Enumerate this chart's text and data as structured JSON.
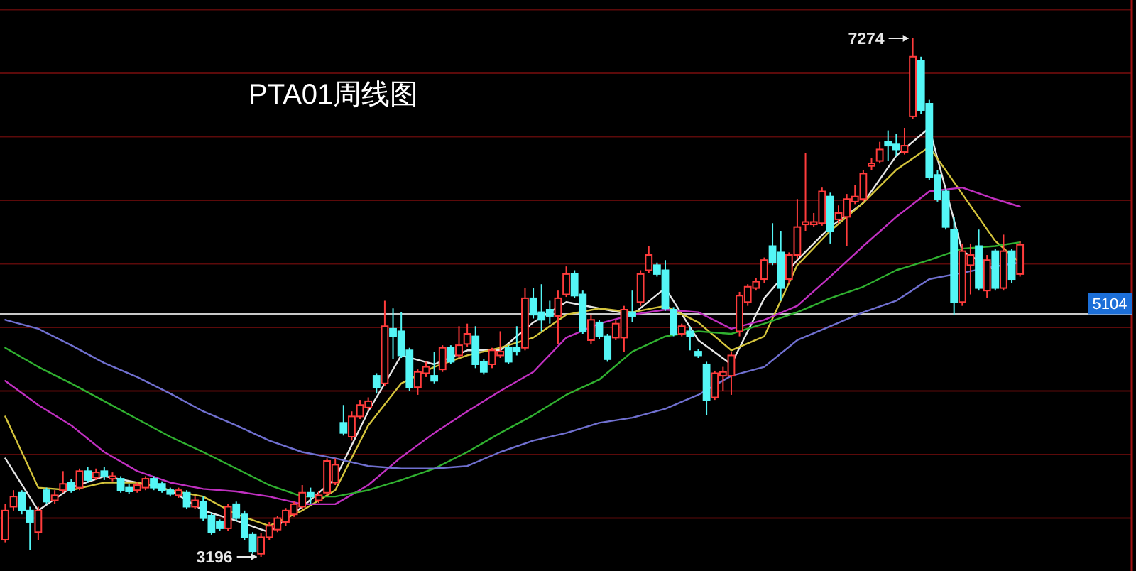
{
  "chart_data": {
    "type": "candlestick",
    "title": "PTA01周线图",
    "categories": [
      null,
      null,
      null,
      null,
      null,
      null,
      null,
      null,
      null,
      null,
      null,
      null,
      null,
      null,
      null,
      null,
      null,
      null,
      null,
      null,
      null,
      null,
      null,
      null,
      null,
      null,
      null,
      null,
      null,
      null,
      null,
      null,
      null,
      null,
      null,
      null,
      null,
      null,
      null,
      null,
      null,
      null,
      null,
      null,
      null,
      null,
      null,
      null,
      null,
      null,
      null,
      null,
      null,
      null,
      null,
      null,
      null,
      null,
      null,
      null,
      null,
      null,
      null,
      null,
      null,
      null,
      null,
      null,
      null,
      null,
      null,
      null,
      null,
      null,
      null,
      null,
      null,
      null,
      null,
      null,
      null,
      null,
      null,
      null,
      null,
      null,
      null,
      null,
      null,
      null,
      null,
      null,
      null,
      null,
      null,
      null,
      null,
      null,
      null,
      null,
      null,
      null,
      null,
      null,
      null,
      null,
      null,
      null,
      null,
      null,
      null,
      null,
      null,
      null,
      null,
      null,
      null,
      null,
      null,
      null,
      null,
      null,
      null,
      null
    ],
    "ohlc": [
      [
        3330,
        3610,
        3310,
        3560
      ],
      [
        3590,
        3720,
        3560,
        3670
      ],
      [
        3700,
        3720,
        3530,
        3560
      ],
      [
        3560,
        3590,
        3250,
        3470
      ],
      [
        3390,
        3590,
        3330,
        3560
      ],
      [
        3720,
        3740,
        3610,
        3630
      ],
      [
        3640,
        3720,
        3610,
        3680
      ],
      [
        3720,
        3870,
        3700,
        3770
      ],
      [
        3780,
        3810,
        3700,
        3720
      ],
      [
        3740,
        3890,
        3720,
        3870
      ],
      [
        3870,
        3900,
        3780,
        3800
      ],
      [
        3820,
        3890,
        3800,
        3860
      ],
      [
        3870,
        3900,
        3800,
        3830
      ],
      [
        3810,
        3860,
        3790,
        3830
      ],
      [
        3810,
        3830,
        3700,
        3720
      ],
      [
        3740,
        3770,
        3690,
        3710
      ],
      [
        3720,
        3780,
        3700,
        3760
      ],
      [
        3740,
        3830,
        3720,
        3810
      ],
      [
        3810,
        3830,
        3720,
        3740
      ],
      [
        3770,
        3790,
        3700,
        3720
      ],
      [
        3720,
        3740,
        3670,
        3690
      ],
      [
        3680,
        3740,
        3660,
        3720
      ],
      [
        3700,
        3720,
        3570,
        3590
      ],
      [
        3590,
        3670,
        3570,
        3640
      ],
      [
        3630,
        3670,
        3480,
        3500
      ],
      [
        3520,
        3540,
        3370,
        3390
      ],
      [
        3470,
        3490,
        3400,
        3420
      ],
      [
        3420,
        3610,
        3400,
        3590
      ],
      [
        3610,
        3630,
        3480,
        3500
      ],
      [
        3530,
        3560,
        3330,
        3350
      ],
      [
        3370,
        3390,
        3220,
        3240
      ],
      [
        3220,
        3380,
        3196,
        3350
      ],
      [
        3350,
        3470,
        3330,
        3440
      ],
      [
        3410,
        3520,
        3390,
        3500
      ],
      [
        3470,
        3580,
        3440,
        3560
      ],
      [
        3530,
        3630,
        3510,
        3610
      ],
      [
        3590,
        3760,
        3570,
        3700
      ],
      [
        3700,
        3740,
        3610,
        3670
      ],
      [
        3640,
        3710,
        3620,
        3680
      ],
      [
        3700,
        3970,
        3680,
        3950
      ],
      [
        3780,
        3970,
        3760,
        3920
      ],
      [
        4250,
        4390,
        4150,
        4170
      ],
      [
        4140,
        4340,
        4110,
        4300
      ],
      [
        4300,
        4430,
        4280,
        4390
      ],
      [
        4370,
        4450,
        4350,
        4420
      ],
      [
        4620,
        4640,
        4480,
        4530
      ],
      [
        4560,
        5210,
        4540,
        5010
      ],
      [
        4990,
        5150,
        4750,
        4930
      ],
      [
        4970,
        5120,
        4760,
        4780
      ],
      [
        4820,
        4840,
        4500,
        4530
      ],
      [
        4530,
        4670,
        4470,
        4650
      ],
      [
        4640,
        4730,
        4610,
        4690
      ],
      [
        4620,
        4810,
        4560,
        4580
      ],
      [
        4670,
        4860,
        4650,
        4840
      ],
      [
        4840,
        4860,
        4710,
        4730
      ],
      [
        4780,
        5010,
        4760,
        4860
      ],
      [
        4870,
        5030,
        4850,
        4950
      ],
      [
        4930,
        5010,
        4680,
        4710
      ],
      [
        4730,
        4750,
        4630,
        4650
      ],
      [
        4710,
        4840,
        4680,
        4820
      ],
      [
        4780,
        4970,
        4760,
        4810
      ],
      [
        4840,
        4860,
        4710,
        4730
      ],
      [
        4840,
        5010,
        4780,
        4810
      ],
      [
        4840,
        5310,
        4820,
        5230
      ],
      [
        5230,
        5310,
        5070,
        5100
      ],
      [
        5120,
        5340,
        4970,
        5060
      ],
      [
        5140,
        5210,
        5030,
        5090
      ],
      [
        5090,
        5290,
        4870,
        5230
      ],
      [
        5260,
        5480,
        5240,
        5420
      ],
      [
        5420,
        5450,
        5230,
        5250
      ],
      [
        5260,
        5290,
        4950,
        4970
      ],
      [
        4900,
        5100,
        4870,
        5060
      ],
      [
        5040,
        5060,
        4910,
        4930
      ],
      [
        4930,
        4950,
        4730,
        4750
      ],
      [
        4920,
        5060,
        4900,
        5030
      ],
      [
        4920,
        5170,
        4810,
        5140
      ],
      [
        5120,
        5290,
        5040,
        5090
      ],
      [
        5200,
        5450,
        5170,
        5420
      ],
      [
        5450,
        5640,
        5430,
        5570
      ],
      [
        5490,
        5510,
        5400,
        5420
      ],
      [
        5450,
        5530,
        5130,
        5150
      ],
      [
        5140,
        5160,
        4930,
        4950
      ],
      [
        4950,
        5030,
        4930,
        5010
      ],
      [
        4970,
        5000,
        4820,
        4930
      ],
      [
        4810,
        4830,
        4760,
        4780
      ],
      [
        4710,
        4730,
        4310,
        4430
      ],
      [
        4450,
        4660,
        4430,
        4640
      ],
      [
        4620,
        4690,
        4500,
        4650
      ],
      [
        4620,
        4810,
        4470,
        4780
      ],
      [
        4970,
        5280,
        4930,
        5250
      ],
      [
        5200,
        5340,
        5170,
        5320
      ],
      [
        5310,
        5390,
        5290,
        5360
      ],
      [
        5380,
        5550,
        5350,
        5530
      ],
      [
        5640,
        5820,
        5490,
        5510
      ],
      [
        5590,
        5760,
        5210,
        5310
      ],
      [
        5380,
        5590,
        5350,
        5570
      ],
      [
        5570,
        6010,
        5540,
        5790
      ],
      [
        5810,
        6370,
        5760,
        5830
      ],
      [
        5810,
        5900,
        5790,
        5830
      ],
      [
        5820,
        6100,
        5800,
        6070
      ],
      [
        6030,
        6060,
        5660,
        5760
      ],
      [
        5850,
        5960,
        5820,
        5900
      ],
      [
        5870,
        6050,
        5640,
        6010
      ],
      [
        5990,
        6120,
        5970,
        6030
      ],
      [
        6010,
        6240,
        5990,
        6210
      ],
      [
        6270,
        6330,
        6240,
        6290
      ],
      [
        6310,
        6460,
        6290,
        6400
      ],
      [
        6460,
        6550,
        6310,
        6430
      ],
      [
        6440,
        6520,
        6350,
        6400
      ],
      [
        6380,
        6570,
        6360,
        6430
      ],
      [
        6660,
        7274,
        6640,
        7130
      ],
      [
        7100,
        7130,
        6680,
        6710
      ],
      [
        6760,
        6790,
        6160,
        6180
      ],
      [
        6200,
        6240,
        5990,
        6010
      ],
      [
        6070,
        6090,
        5770,
        5790
      ],
      [
        5770,
        5870,
        5100,
        5200
      ],
      [
        5200,
        5660,
        5170,
        5600
      ],
      [
        5490,
        5660,
        5260,
        5570
      ],
      [
        5640,
        5770,
        5290,
        5310
      ],
      [
        5290,
        5570,
        5230,
        5530
      ],
      [
        5600,
        5620,
        5290,
        5310
      ],
      [
        5310,
        5730,
        5290,
        5600
      ],
      [
        5600,
        5620,
        5350,
        5380
      ],
      [
        5420,
        5680,
        5400,
        5650
      ]
    ],
    "series": [
      {
        "type": "line",
        "color": "#e6e6e6",
        "values": [
          3970,
          null,
          null,
          null,
          3560,
          null,
          null,
          null,
          3740,
          null,
          null,
          null,
          3830,
          null,
          null,
          null,
          3780,
          null,
          null,
          null,
          3720,
          null,
          null,
          null,
          3560,
          null,
          null,
          null,
          3480,
          null,
          null,
          null,
          3390,
          null,
          null,
          null,
          3590,
          null,
          null,
          null,
          3810,
          null,
          null,
          null,
          4340,
          null,
          null,
          null,
          4780,
          null,
          null,
          null,
          4710,
          null,
          null,
          null,
          4820,
          null,
          null,
          null,
          4820,
          null,
          null,
          null,
          5040,
          null,
          null,
          null,
          5200,
          null,
          null,
          null,
          5150,
          null,
          null,
          null,
          5100,
          null,
          null,
          null,
          5310,
          null,
          null,
          null,
          4900,
          null,
          null,
          null,
          4710,
          null,
          null,
          null,
          5230,
          null,
          null,
          null,
          5530,
          null,
          null,
          null,
          5790,
          null,
          null,
          null,
          5980,
          null,
          null,
          null,
          6350,
          null,
          null,
          null,
          6570,
          null,
          null,
          null,
          5600,
          null,
          null,
          null,
          5450,
          null,
          null,
          null
        ]
      },
      {
        "type": "line",
        "color": "#d4c43c",
        "values": [
          4300,
          null,
          null,
          null,
          3740,
          null,
          null,
          null,
          3720,
          null,
          null,
          null,
          3780,
          null,
          null,
          null,
          3780,
          null,
          null,
          null,
          3720,
          null,
          null,
          null,
          3670,
          null,
          null,
          null,
          3530,
          null,
          null,
          null,
          3440,
          null,
          null,
          null,
          3560,
          null,
          null,
          null,
          3720,
          null,
          null,
          null,
          4230,
          null,
          null,
          null,
          4560,
          null,
          null,
          null,
          4690,
          null,
          null,
          null,
          4780,
          null,
          null,
          null,
          4840,
          null,
          null,
          null,
          4920,
          null,
          null,
          null,
          5100,
          null,
          null,
          null,
          5150,
          null,
          null,
          null,
          5120,
          null,
          null,
          null,
          5170,
          null,
          null,
          null,
          5040,
          null,
          null,
          null,
          4820,
          null,
          null,
          null,
          4930,
          null,
          null,
          null,
          5490,
          null,
          null,
          null,
          5760,
          null,
          null,
          null,
          5980,
          null,
          null,
          null,
          6240,
          null,
          null,
          null,
          6420,
          null,
          null,
          null,
          6050,
          null,
          null,
          null,
          5680,
          null,
          null,
          5510
        ]
      },
      {
        "type": "line",
        "color": "#c030c0",
        "values": [
          4580,
          null,
          null,
          null,
          4390,
          null,
          null,
          null,
          4230,
          null,
          null,
          null,
          4020,
          null,
          null,
          null,
          3870,
          null,
          null,
          null,
          3780,
          null,
          null,
          null,
          3730,
          null,
          null,
          null,
          3710,
          null,
          null,
          null,
          3670,
          null,
          null,
          null,
          3610,
          null,
          null,
          null,
          3610,
          null,
          null,
          null,
          3760,
          null,
          null,
          null,
          3980,
          null,
          null,
          null,
          4170,
          null,
          null,
          null,
          4340,
          null,
          null,
          null,
          4500,
          null,
          null,
          null,
          4650,
          null,
          null,
          null,
          4920,
          null,
          null,
          null,
          5030,
          null,
          null,
          null,
          5100,
          null,
          null,
          null,
          5140,
          null,
          null,
          null,
          5120,
          null,
          null,
          null,
          4990,
          null,
          null,
          null,
          5060,
          null,
          null,
          null,
          5170,
          null,
          null,
          null,
          5400,
          null,
          null,
          null,
          5640,
          null,
          null,
          null,
          5870,
          null,
          null,
          null,
          6070,
          null,
          null,
          null,
          6100,
          null,
          null,
          null,
          6010,
          null,
          null,
          5950
        ]
      },
      {
        "type": "line",
        "color": "#30b030",
        "values": [
          4840,
          null,
          null,
          null,
          4690,
          null,
          null,
          null,
          4560,
          null,
          null,
          null,
          4420,
          null,
          null,
          null,
          4280,
          null,
          null,
          null,
          4140,
          null,
          null,
          null,
          4020,
          null,
          null,
          null,
          3890,
          null,
          null,
          null,
          3760,
          null,
          null,
          null,
          3670,
          null,
          null,
          null,
          3670,
          null,
          null,
          null,
          3720,
          null,
          null,
          null,
          3800,
          null,
          null,
          null,
          3890,
          null,
          null,
          null,
          4020,
          null,
          null,
          null,
          4170,
          null,
          null,
          null,
          4310,
          null,
          null,
          null,
          4470,
          null,
          null,
          null,
          4590,
          null,
          null,
          null,
          4810,
          null,
          null,
          null,
          4930,
          null,
          null,
          null,
          4970,
          null,
          null,
          null,
          4950,
          null,
          null,
          null,
          5030,
          null,
          null,
          null,
          5120,
          null,
          null,
          null,
          5230,
          null,
          null,
          null,
          5320,
          null,
          null,
          null,
          5450,
          null,
          null,
          null,
          5530,
          null,
          null,
          null,
          5620,
          null,
          null,
          null,
          5640,
          null,
          null,
          5670
        ]
      },
      {
        "type": "line",
        "color": "#7070d0",
        "values": [
          5060,
          null,
          null,
          null,
          4990,
          null,
          null,
          null,
          4860,
          null,
          null,
          null,
          4720,
          null,
          null,
          null,
          4610,
          null,
          null,
          null,
          4480,
          null,
          null,
          null,
          4340,
          null,
          null,
          null,
          4230,
          null,
          null,
          null,
          4110,
          null,
          null,
          null,
          4020,
          null,
          null,
          null,
          3970,
          null,
          null,
          null,
          3910,
          null,
          null,
          null,
          3890,
          null,
          null,
          null,
          3890,
          null,
          null,
          null,
          3910,
          null,
          null,
          null,
          4020,
          null,
          null,
          null,
          4110,
          null,
          null,
          null,
          4170,
          null,
          null,
          null,
          4250,
          null,
          null,
          null,
          4290,
          null,
          null,
          null,
          4360,
          null,
          null,
          null,
          4470,
          null,
          null,
          null,
          4620,
          null,
          null,
          null,
          4690,
          null,
          null,
          null,
          4900,
          null,
          null,
          null,
          5010,
          null,
          null,
          null,
          5120,
          null,
          null,
          null,
          5210,
          null,
          null,
          null,
          5380,
          null,
          null,
          null,
          5430,
          null,
          null,
          null,
          5480,
          null,
          null,
          5510
        ]
      }
    ],
    "ref_lines": [
      {
        "axis": "y",
        "value": 5104,
        "label": "5104",
        "color": "#c8c8c8"
      }
    ],
    "annotations": [
      "7274",
      "3196"
    ],
    "yticks": [
      {
        "value": 3500,
        "label": null
      },
      {
        "value": 4000,
        "label": null
      },
      {
        "value": 4500,
        "label": null
      },
      {
        "value": 5000,
        "label": null
      },
      {
        "value": 5500,
        "label": null
      },
      {
        "value": 6000,
        "label": null
      },
      {
        "value": 6500,
        "label": null
      },
      {
        "value": 7000,
        "label": null
      },
      {
        "value": 7500,
        "label": null
      }
    ],
    "grid": "y"
  }
}
